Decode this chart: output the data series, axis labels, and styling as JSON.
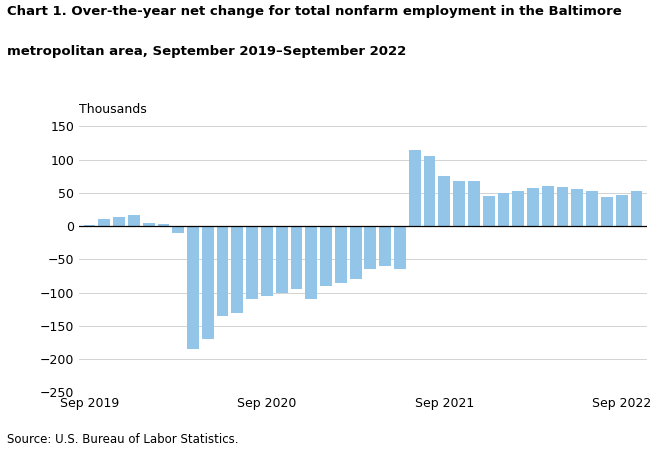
{
  "title_line1": "Chart 1. Over-the-year net change for total nonfarm employment in the Baltimore",
  "title_line2": "metropolitan area, September 2019–September 2022",
  "ylabel": "Thousands",
  "source": "Source: U.S. Bureau of Labor Statistics.",
  "bar_color": "#92C5E8",
  "ylim": [
    -250,
    150
  ],
  "yticks": [
    -250,
    -200,
    -150,
    -100,
    -50,
    0,
    50,
    100,
    150
  ],
  "xtick_labels": [
    "Sep 2019",
    "Sep 2020",
    "Sep 2021",
    "Sep 2022"
  ],
  "xtick_positions": [
    0,
    12,
    24,
    36
  ],
  "values": [
    2,
    10,
    13,
    16,
    5,
    3,
    -10,
    -185,
    -170,
    -135,
    -130,
    -110,
    -105,
    -100,
    -95,
    -110,
    -90,
    -85,
    -80,
    -65,
    -60,
    -65,
    115,
    106,
    75,
    67,
    68,
    45,
    50,
    53,
    57,
    60,
    58,
    55,
    52,
    43,
    47,
    53
  ]
}
